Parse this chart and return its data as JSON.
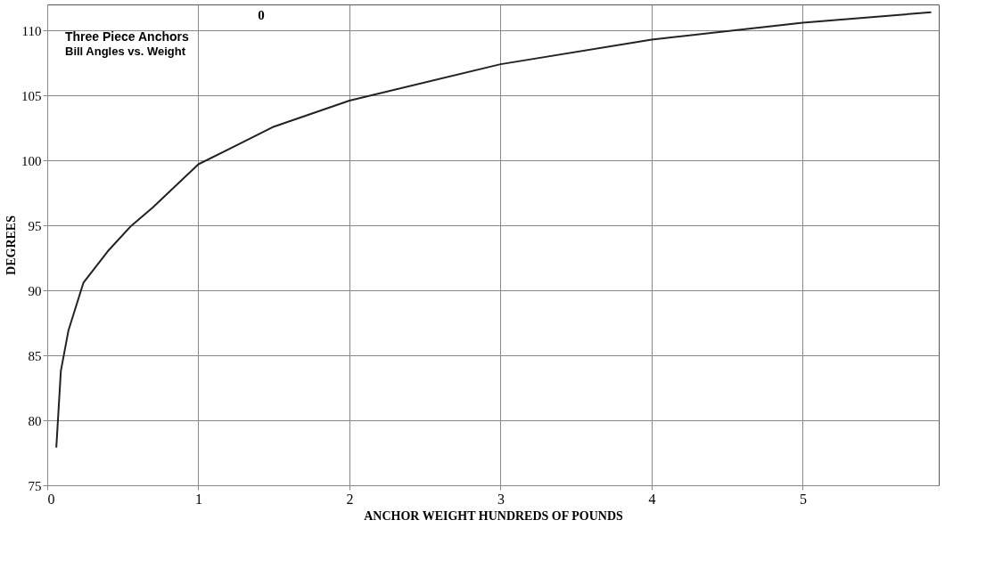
{
  "chart_data": {
    "type": "line",
    "title": "Three Piece Anchors",
    "subtitle": "Bill Angles vs. Weight",
    "xlabel": "ANCHOR WEIGHT HUNDREDS OF POUNDS",
    "ylabel": "DEGREES",
    "x": [
      0.06,
      0.09,
      0.14,
      0.24,
      0.4,
      0.55,
      0.7,
      1.0,
      1.5,
      2.0,
      3.0,
      4.0,
      5.0,
      5.85
    ],
    "series": [
      {
        "color": "#222222",
        "values": [
          77.9,
          83.8,
          86.9,
          90.6,
          93.0,
          94.9,
          96.4,
          99.7,
          102.6,
          104.6,
          107.4,
          109.3,
          110.6,
          111.4
        ]
      }
    ],
    "xlim": [
      0,
      5.9
    ],
    "xticks": [
      0,
      1,
      2,
      3,
      4,
      5
    ],
    "ylim": [
      75,
      112
    ],
    "yticks": [
      75,
      80,
      85,
      90,
      95,
      100,
      105,
      110
    ],
    "grid": true,
    "marker": "none",
    "line_style": "solid",
    "annotations": [
      "0"
    ]
  }
}
